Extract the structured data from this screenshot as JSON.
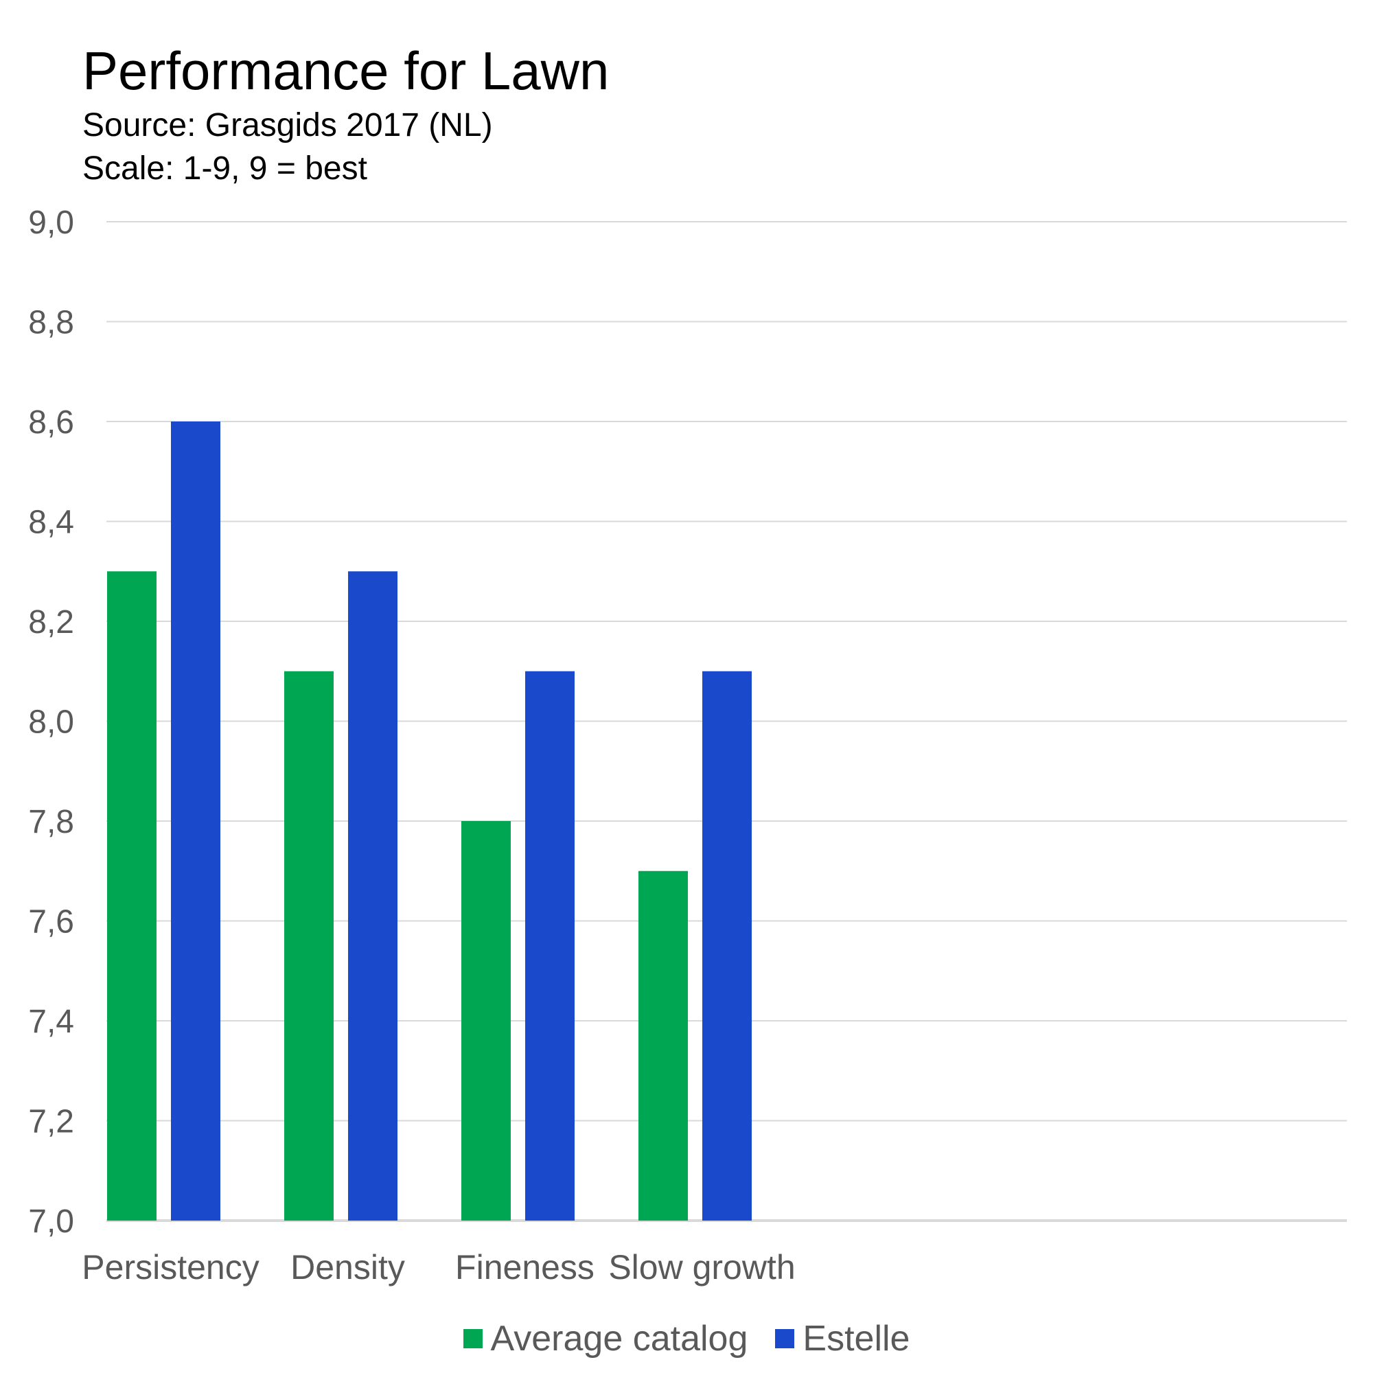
{
  "chart_data": {
    "type": "bar",
    "title": "Performance for Lawn",
    "subtitle": [
      "Source: Grasgids 2017 (NL)",
      "Scale: 1-9, 9 = best"
    ],
    "categories": [
      "Persistency",
      "Density",
      "Fineness",
      "Slow growth"
    ],
    "series": [
      {
        "name": "Average catalog",
        "color": "#00A651",
        "values": [
          8.3,
          8.1,
          7.8,
          7.7
        ]
      },
      {
        "name": "Estelle",
        "color": "#1A49CC",
        "values": [
          8.6,
          8.3,
          8.1,
          8.1
        ]
      }
    ],
    "ylim": [
      7.0,
      9.0
    ],
    "yticks": [
      "7,0",
      "7,2",
      "7,4",
      "7,6",
      "7,8",
      "8,0",
      "8,2",
      "8,4",
      "8,6",
      "8,8",
      "9,0"
    ],
    "grid": true,
    "legend": "bottom",
    "xlabel": "",
    "ylabel": ""
  }
}
